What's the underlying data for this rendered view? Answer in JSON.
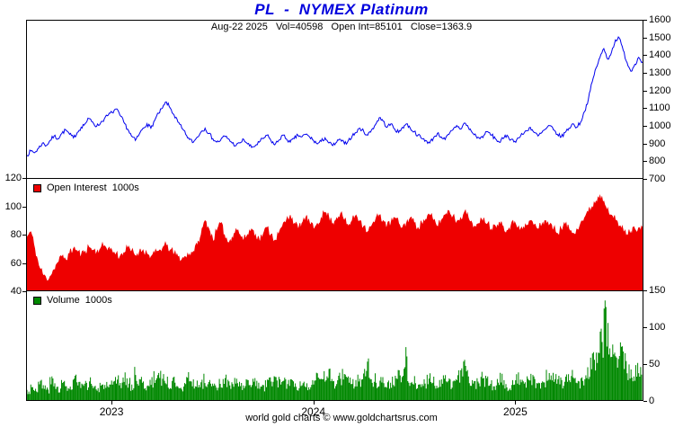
{
  "title": "PL  -  NYMEX Platinum",
  "subtitle": "Aug-22 2025   Vol=40598   Open Int=85101   Close=1363.9",
  "footer": "world gold charts © www.goldchartsrus.com",
  "colors": {
    "title": "#0000dd",
    "price_line": "#0000ee",
    "open_interest": "#ee0000",
    "volume": "#008800",
    "border": "#000000"
  },
  "legends": {
    "open_interest": "Open Interest  1000s",
    "volume": "Volume  1000s"
  },
  "axes": {
    "price": {
      "min": 700,
      "max": 1600,
      "ticks": [
        1600,
        1500,
        1400,
        1300,
        1200,
        1100,
        1000,
        900,
        800,
        700
      ],
      "side": "right"
    },
    "open_interest": {
      "min": 40,
      "max": 120,
      "ticks": [
        120,
        100,
        80,
        60,
        40
      ],
      "side": "left"
    },
    "volume": {
      "min": 0,
      "max": 150,
      "ticks": [
        150,
        100,
        50,
        0
      ],
      "side": "right"
    }
  },
  "x_axis": {
    "year_labels": [
      "2023",
      "2024",
      "2025"
    ],
    "year_tick_indices": [
      22,
      74,
      126
    ],
    "n_points": 160
  },
  "chart_data": [
    {
      "type": "line",
      "name": "PL NYMEX Platinum settlement price",
      "title": "PL - NYMEX Platinum",
      "ylim": [
        700,
        1600
      ],
      "last_date": "Aug-22 2025",
      "close": 1363.9,
      "values_note": "weekly values estimated from chart, Aug 2022 - Aug 2025",
      "values": [
        830,
        855,
        845,
        870,
        900,
        885,
        915,
        940,
        925,
        955,
        975,
        950,
        930,
        960,
        990,
        1010,
        1040,
        1020,
        995,
        1015,
        1040,
        1060,
        1075,
        1095,
        1060,
        1020,
        980,
        940,
        915,
        950,
        985,
        1010,
        985,
        1030,
        1070,
        1100,
        1135,
        1100,
        1060,
        1020,
        985,
        950,
        920,
        905,
        935,
        965,
        985,
        955,
        925,
        905,
        915,
        940,
        925,
        900,
        885,
        900,
        920,
        895,
        875,
        885,
        905,
        925,
        945,
        915,
        890,
        915,
        945,
        925,
        905,
        925,
        945,
        935,
        950,
        935,
        915,
        895,
        910,
        930,
        900,
        885,
        905,
        920,
        895,
        915,
        940,
        960,
        985,
        965,
        945,
        975,
        1005,
        1045,
        1025,
        990,
        1010,
        980,
        960,
        990,
        1010,
        985,
        965,
        945,
        925,
        915,
        900,
        930,
        955,
        935,
        920,
        950,
        975,
        1000,
        980,
        1015,
        990,
        960,
        940,
        925,
        945,
        965,
        945,
        925,
        905,
        925,
        945,
        920,
        910,
        930,
        950,
        970,
        990,
        960,
        940,
        960,
        980,
        1000,
        975,
        950,
        935,
        960,
        985,
        1010,
        990,
        1020,
        1080,
        1150,
        1250,
        1330,
        1390,
        1440,
        1380,
        1420,
        1490,
        1500,
        1430,
        1360,
        1310,
        1350,
        1390,
        1364
      ]
    },
    {
      "type": "area",
      "name": "Open Interest (1000s)",
      "ylim": [
        40,
        120
      ],
      "last_value": 85.101,
      "values_note": "weekly values estimated from chart",
      "values": [
        78,
        82,
        70,
        58,
        52,
        48,
        50,
        55,
        60,
        64,
        62,
        66,
        70,
        68,
        65,
        68,
        71,
        69,
        67,
        70,
        72,
        70,
        68,
        66,
        64,
        67,
        70,
        68,
        65,
        67,
        69,
        66,
        64,
        66,
        68,
        70,
        72,
        69,
        66,
        64,
        62,
        64,
        66,
        68,
        72,
        80,
        90,
        84,
        76,
        82,
        88,
        80,
        74,
        78,
        84,
        80,
        76,
        80,
        84,
        80,
        76,
        80,
        85,
        80,
        76,
        80,
        86,
        90,
        94,
        88,
        84,
        88,
        92,
        88,
        84,
        88,
        92,
        96,
        92,
        88,
        92,
        95,
        90,
        86,
        90,
        94,
        90,
        86,
        82,
        86,
        90,
        94,
        90,
        86,
        88,
        92,
        88,
        85,
        88,
        92,
        88,
        85,
        88,
        91,
        94,
        90,
        86,
        90,
        94,
        97,
        93,
        89,
        92,
        96,
        92,
        88,
        85,
        88,
        92,
        88,
        84,
        86,
        89,
        86,
        83,
        86,
        89,
        86,
        83,
        86,
        90,
        87,
        84,
        87,
        90,
        87,
        84,
        81,
        84,
        87,
        84,
        81,
        84,
        88,
        92,
        96,
        100,
        104,
        108,
        104,
        99,
        94,
        90,
        86,
        83,
        80,
        82,
        84,
        85,
        85
      ]
    },
    {
      "type": "bar",
      "name": "Volume (1000s)",
      "ylim": [
        0,
        150
      ],
      "last_value": 40.598,
      "values_note": "weekly values estimated from chart",
      "values": [
        12,
        18,
        15,
        22,
        18,
        14,
        25,
        20,
        16,
        22,
        18,
        15,
        28,
        22,
        17,
        20,
        25,
        19,
        14,
        18,
        22,
        16,
        20,
        26,
        22,
        30,
        24,
        19,
        34,
        26,
        21,
        18,
        24,
        30,
        36,
        30,
        24,
        21,
        26,
        22,
        18,
        24,
        30,
        24,
        20,
        23,
        27,
        22,
        18,
        16,
        22,
        28,
        23,
        19,
        24,
        21,
        17,
        22,
        26,
        23,
        19,
        17,
        22,
        27,
        31,
        25,
        20,
        23,
        27,
        22,
        18,
        22,
        25,
        20,
        23,
        28,
        24,
        30,
        36,
        28,
        23,
        29,
        36,
        30,
        25,
        22,
        28,
        38,
        48,
        34,
        28,
        24,
        31,
        26,
        22,
        27,
        33,
        28,
        55,
        21,
        26,
        22,
        19,
        24,
        29,
        24,
        21,
        26,
        31,
        26,
        22,
        28,
        33,
        42,
        40,
        26,
        21,
        26,
        31,
        26,
        21,
        18,
        24,
        28,
        22,
        18,
        24,
        29,
        24,
        20,
        25,
        30,
        25,
        21,
        26,
        31,
        36,
        30,
        25,
        21,
        27,
        32,
        27,
        23,
        28,
        36,
        44,
        52,
        62,
        78,
        112,
        86,
        65,
        50,
        72,
        56,
        42,
        34,
        38,
        41
      ]
    }
  ]
}
